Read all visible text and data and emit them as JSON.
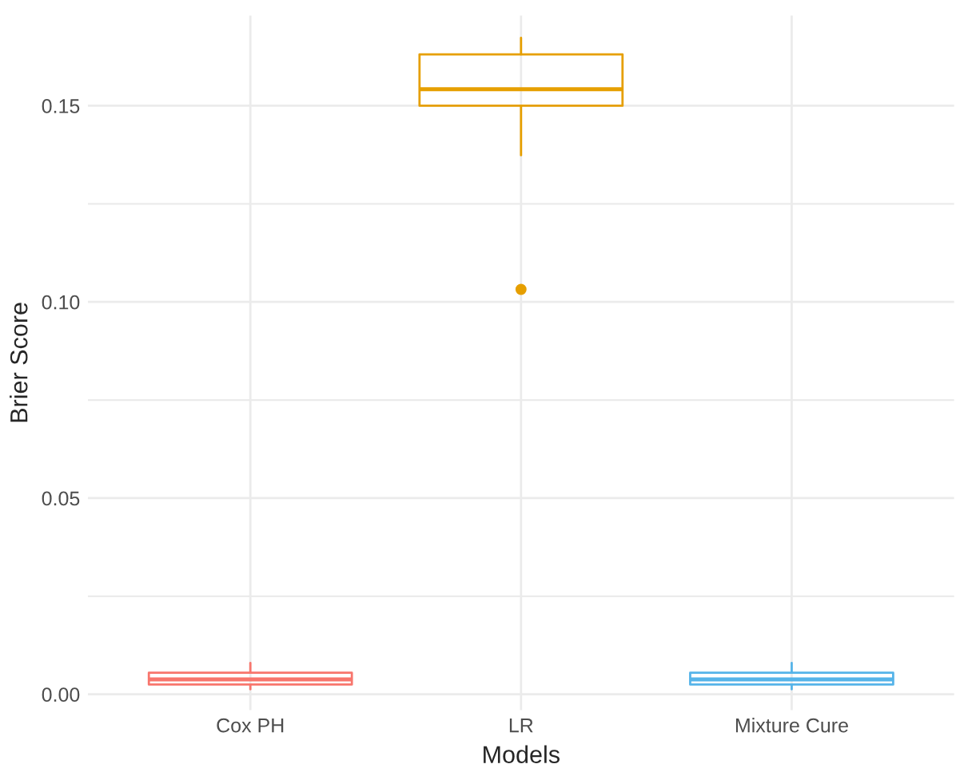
{
  "chart_data": {
    "type": "box",
    "xlabel": "Models",
    "ylabel": "Brier Score",
    "categories": [
      "Cox PH",
      "LR",
      "Mixture Cure"
    ],
    "colors": [
      "#f8766d",
      "#e69f00",
      "#56b4e9"
    ],
    "boxes": [
      {
        "low": 0.0013,
        "q1": 0.0025,
        "median": 0.0038,
        "q3": 0.0055,
        "high": 0.008
      },
      {
        "low": 0.1374,
        "q1": 0.15,
        "median": 0.1542,
        "q3": 0.1631,
        "high": 0.1673,
        "outliers": [
          0.1032
        ]
      },
      {
        "low": 0.0013,
        "q1": 0.0025,
        "median": 0.0038,
        "q3": 0.0055,
        "high": 0.008
      }
    ],
    "ylim": [
      -0.004,
      0.173
    ],
    "yticks": [
      {
        "value": 0,
        "label": "0.00"
      },
      0.05,
      {
        "value": 0.1,
        "label": "0.10"
      },
      0.15
    ],
    "grid": true,
    "legend": false
  }
}
